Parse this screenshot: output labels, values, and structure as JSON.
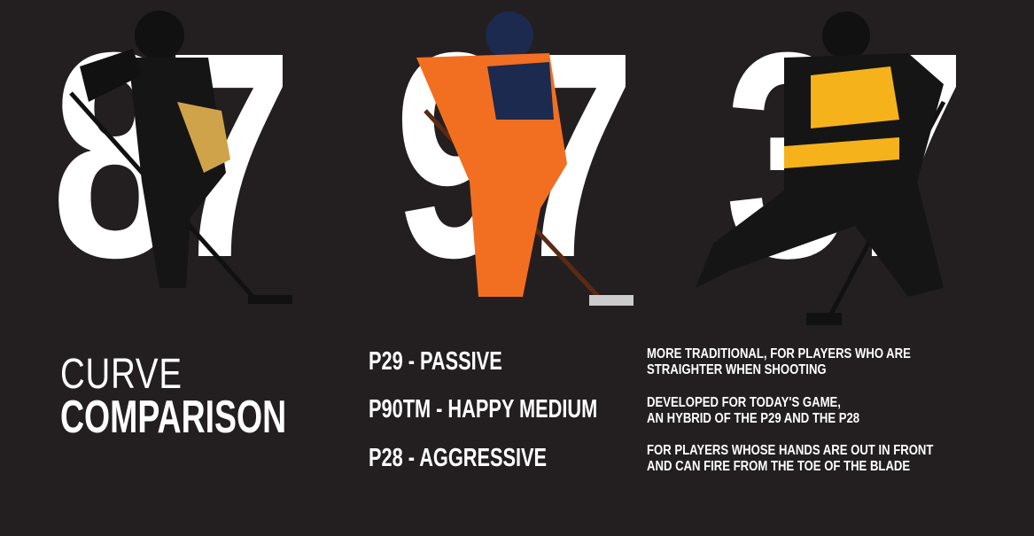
{
  "jersey_numbers": [
    "87",
    "97",
    "37"
  ],
  "title": {
    "line1": "CURVE",
    "line2": "COMPARISON"
  },
  "curves": [
    {
      "name": "P29 - PASSIVE",
      "description": [
        "MORE TRADITIONAL, FOR PLAYERS WHO ARE",
        "STRAIGHTER WHEN SHOOTING"
      ]
    },
    {
      "name": "P90TM - HAPPY MEDIUM",
      "description": [
        "DEVELOPED FOR TODAY'S GAME,",
        "AN HYBRID OF THE P29 AND THE P28"
      ]
    },
    {
      "name": "P28 - AGGRESSIVE",
      "description": [
        "FOR PLAYERS WHOSE HANDS ARE OUT IN FRONT",
        "AND CAN FIRE FROM THE TOE OF THE BLADE"
      ]
    }
  ],
  "colors": {
    "background": "#231f20",
    "text": "#ffffff",
    "penguins_gold": "#cfa34a",
    "oilers_orange": "#f26f21",
    "oilers_navy": "#1b2a4e",
    "bruins_gold": "#f5b21b"
  }
}
